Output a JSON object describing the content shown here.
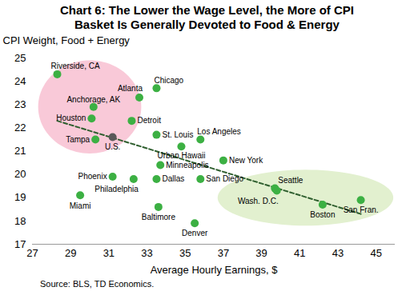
{
  "chart_data": {
    "type": "scatter",
    "title": "Chart 6: The Lower the Wage Level, the More of CPI Basket Is Generally Devoted to Food & Energy",
    "y_label": "CPI Weight, Food + Energy",
    "x_label": "Average Hourly Earnings, $",
    "source": "Source: BLS, TD Economics.",
    "labels": [
      "Riverside, CA",
      "Atlanta",
      "Chicago",
      "Anchorage, AK",
      "Houston",
      "Detroit",
      "Tampa",
      "U.S.",
      "St. Louis",
      "Urban Hawaii",
      "Los Angeles",
      "Minneapolis",
      "San Diego",
      "New York",
      "Phoenix",
      "Philadelphia",
      "Dallas",
      "Miami",
      "Baltimore",
      "Denver",
      "Seattle",
      "Wash. D.C.",
      "Boston",
      "San Fran."
    ],
    "x": [
      28.3,
      32.6,
      33.5,
      30.2,
      30.1,
      32.2,
      30.3,
      31.2,
      33.5,
      34.8,
      35.8,
      33.7,
      35.8,
      37.0,
      31.2,
      32.3,
      33.5,
      29.5,
      33.6,
      35.5,
      39.7,
      39.8,
      42.2,
      44.2
    ],
    "y": [
      24.3,
      23.3,
      23.7,
      22.9,
      22.4,
      22.3,
      21.5,
      21.6,
      21.7,
      21.2,
      21.5,
      20.4,
      19.8,
      20.6,
      19.9,
      19.8,
      19.8,
      19.1,
      18.6,
      17.9,
      19.4,
      19.3,
      18.7,
      18.9
    ],
    "colors": [
      "#3cb043",
      "#3cb043",
      "#3cb043",
      "#3cb043",
      "#3cb043",
      "#3cb043",
      "#3cb043",
      "#595959",
      "#3cb043",
      "#3cb043",
      "#3cb043",
      "#3cb043",
      "#3cb043",
      "#3cb043",
      "#3cb043",
      "#3cb043",
      "#3cb043",
      "#3cb043",
      "#3cb043",
      "#3cb043",
      "#3cb043",
      "#3cb043",
      "#3cb043",
      "#3cb043"
    ],
    "xlim": [
      27,
      46
    ],
    "xticks": [
      27,
      29,
      31,
      33,
      35,
      37,
      39,
      41,
      43,
      45
    ],
    "ylim": [
      17,
      25
    ],
    "yticks": [
      17,
      18,
      19,
      20,
      21,
      22,
      23,
      24,
      25
    ],
    "grid": false,
    "trend": {
      "x": [
        28.3,
        44.2
      ],
      "y": [
        22.3,
        18.3
      ],
      "color": "#2f5f2f",
      "line_style": "dashed"
    },
    "highlights": [
      {
        "cx": 30.0,
        "cy": 22.9,
        "rx": 2.7,
        "ry": 2.0,
        "color": "#f9c9d8"
      },
      {
        "cx": 41.3,
        "cy": 19.0,
        "rx": 4.6,
        "ry": 1.2,
        "color": "#e2f0cf"
      }
    ]
  }
}
